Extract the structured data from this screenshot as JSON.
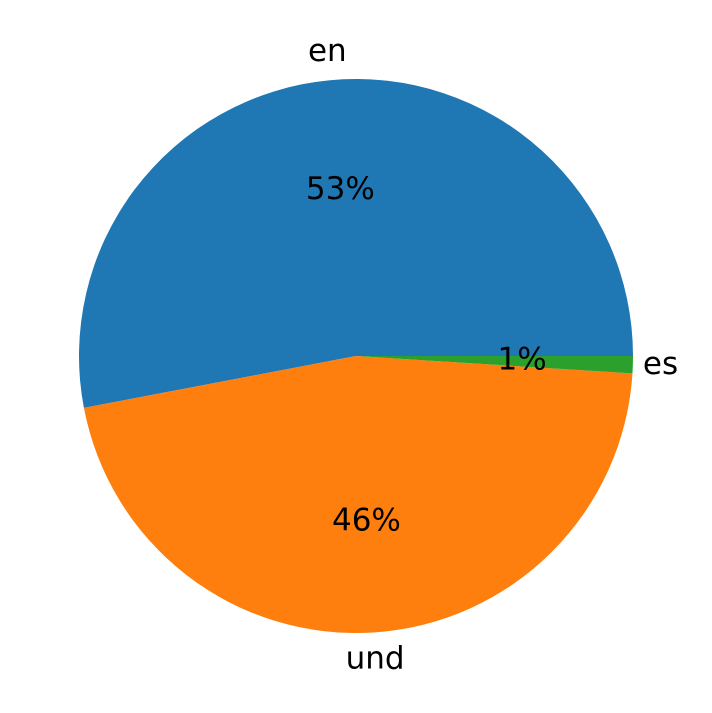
{
  "chart_data": {
    "type": "pie",
    "categories": [
      "en",
      "und",
      "es"
    ],
    "values": [
      53,
      46,
      1
    ],
    "value_labels": [
      "53%",
      "46%",
      "1%"
    ],
    "colors": [
      "#1f77b4",
      "#ff7f0e",
      "#2ca02c"
    ],
    "start_angle": 0,
    "counterclockwise": true
  }
}
